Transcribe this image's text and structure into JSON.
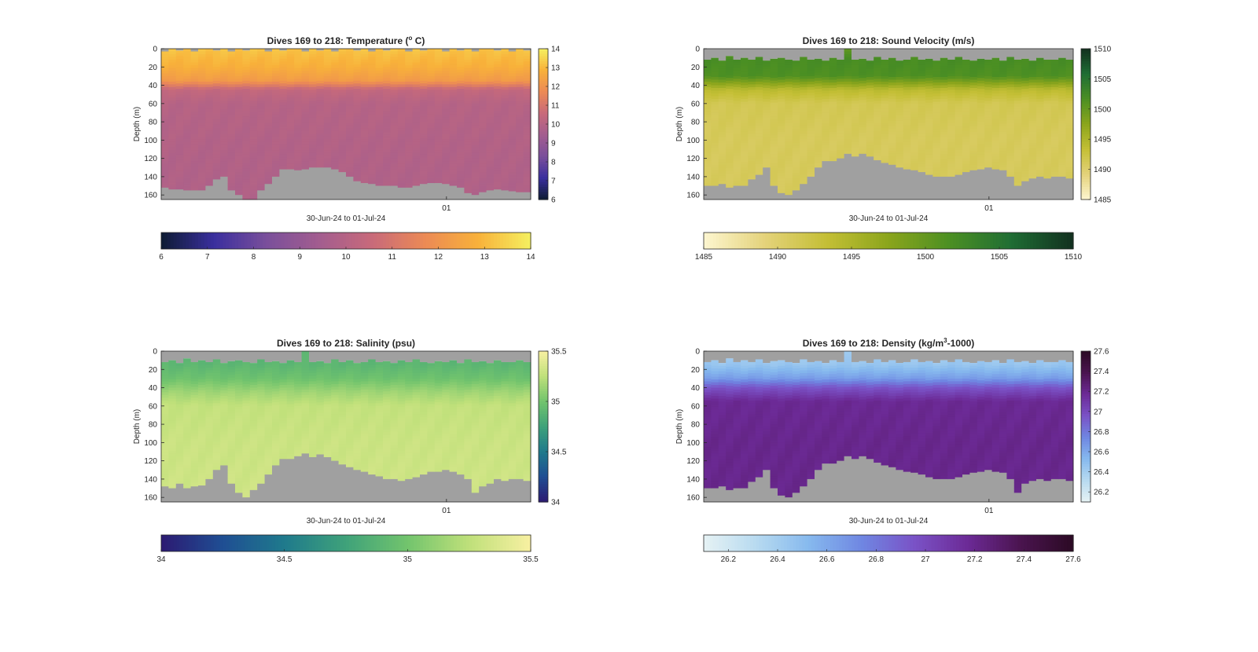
{
  "figure": {
    "background": "#ffffff",
    "missing_color": "#a0a0a0"
  },
  "chart_data": [
    {
      "type": "heatmap",
      "title_main": "Dives 169 to 218: Temperature (",
      "title_sup": "o",
      "title_tail": " C)",
      "xlabel": "30-Jun-24 to 01-Jul-24",
      "ylabel": "Depth (m)",
      "x_tick_labels": [
        "01"
      ],
      "y_ticks": [
        0,
        20,
        40,
        60,
        80,
        100,
        120,
        140,
        160
      ],
      "ylim": [
        0,
        165
      ],
      "y_reversed": true,
      "n_dives": 50,
      "colormap": [
        "#0d1b33",
        "#3a2f9e",
        "#7a4f9b",
        "#a35d8f",
        "#c86a7a",
        "#ec8a55",
        "#f8b13a",
        "#f5f060"
      ],
      "clim": [
        6,
        14
      ],
      "colorbar_ticks": [
        "6",
        "7",
        "8",
        "9",
        "10",
        "11",
        "12",
        "13",
        "14"
      ],
      "horizontal_colorbar_ticks": [
        "6",
        "7",
        "8",
        "9",
        "10",
        "11",
        "12",
        "13",
        "14"
      ],
      "profile": {
        "depths": [
          0,
          20,
          35,
          45,
          60,
          100,
          165
        ],
        "values": [
          13.2,
          12.8,
          12.2,
          10.4,
          10.0,
          9.9,
          9.8
        ]
      },
      "bottom_depth_m": [
        152,
        154,
        154,
        155,
        155,
        155,
        150,
        143,
        140,
        155,
        160,
        165,
        165,
        155,
        148,
        140,
        132,
        132,
        133,
        132,
        130,
        130,
        130,
        132,
        135,
        140,
        145,
        147,
        148,
        150,
        150,
        150,
        152,
        152,
        150,
        148,
        147,
        147,
        148,
        150,
        152,
        158,
        160,
        157,
        155,
        154,
        155,
        156,
        157,
        157
      ],
      "surface_gap_m": [
        3,
        0,
        2,
        0,
        3,
        0,
        0,
        2,
        0,
        3,
        0,
        2,
        0,
        0,
        3,
        0,
        2,
        0,
        0,
        3,
        0,
        2,
        0,
        3,
        0,
        0,
        2,
        0,
        3,
        0,
        2,
        0,
        0,
        3,
        0,
        2,
        0,
        0,
        3,
        0,
        2,
        0,
        3,
        0,
        0,
        2,
        0,
        3,
        0,
        2
      ]
    },
    {
      "type": "heatmap",
      "title_main": "Dives 169 to 218: Sound Velocity (m/s)",
      "title_sup": "",
      "title_tail": "",
      "xlabel": "30-Jun-24 to 01-Jul-24",
      "ylabel": "Depth (m)",
      "x_tick_labels": [
        "01"
      ],
      "y_ticks": [
        0,
        20,
        40,
        60,
        80,
        100,
        120,
        140,
        160
      ],
      "ylim": [
        0,
        165
      ],
      "y_reversed": true,
      "n_dives": 50,
      "colormap": [
        "#fdf6d0",
        "#e4d27a",
        "#c4bf35",
        "#8ba51c",
        "#4b8f23",
        "#1f6d34",
        "#12301f"
      ],
      "clim": [
        1485,
        1510
      ],
      "colorbar_ticks": [
        "1485",
        "1490",
        "1495",
        "1500",
        "1505",
        "1510"
      ],
      "horizontal_colorbar_ticks": [
        "1485",
        "1490",
        "1495",
        "1500",
        "1505",
        "1510"
      ],
      "profile": {
        "depths": [
          0,
          12,
          30,
          45,
          60,
          100,
          165
        ],
        "values": [
          1500,
          1502,
          1501.5,
          1494,
          1491.5,
          1491,
          1491
        ]
      },
      "bottom_depth_m": [
        150,
        150,
        148,
        152,
        150,
        150,
        143,
        138,
        130,
        150,
        158,
        160,
        155,
        148,
        140,
        130,
        123,
        123,
        120,
        115,
        118,
        115,
        118,
        122,
        125,
        127,
        130,
        132,
        133,
        135,
        138,
        140,
        140,
        140,
        138,
        135,
        133,
        132,
        130,
        132,
        133,
        140,
        150,
        145,
        142,
        140,
        142,
        140,
        140,
        142
      ],
      "surface_gap_m": [
        12,
        10,
        13,
        8,
        12,
        10,
        12,
        9,
        13,
        11,
        10,
        12,
        13,
        9,
        12,
        11,
        13,
        10,
        12,
        0,
        12,
        11,
        13,
        9,
        12,
        10,
        13,
        12,
        9,
        12,
        11,
        13,
        10,
        12,
        9,
        12,
        13,
        11,
        12,
        10,
        13,
        9,
        12,
        11,
        13,
        10,
        12,
        12,
        10,
        12
      ]
    },
    {
      "type": "heatmap",
      "title_main": "Dives 169 to 218: Salinity (psu)",
      "title_sup": "",
      "title_tail": "",
      "xlabel": "30-Jun-24 to 01-Jul-24",
      "ylabel": "Depth (m)",
      "x_tick_labels": [
        "01"
      ],
      "y_ticks": [
        0,
        20,
        40,
        60,
        80,
        100,
        120,
        140,
        160
      ],
      "ylim": [
        0,
        165
      ],
      "y_reversed": true,
      "n_dives": 50,
      "colormap": [
        "#2c1a72",
        "#1f4e93",
        "#1f7a8c",
        "#3fa27a",
        "#72c46d",
        "#bfe07a",
        "#f8f0a2"
      ],
      "clim": [
        34,
        35.5
      ],
      "colorbar_ticks": [
        "34",
        "34.5",
        "35",
        "35.5"
      ],
      "horizontal_colorbar_ticks": [
        "34",
        "34.5",
        "35",
        "35.5"
      ],
      "profile": {
        "depths": [
          0,
          15,
          30,
          45,
          60,
          100,
          165
        ],
        "values": [
          34.88,
          34.9,
          34.98,
          35.15,
          35.27,
          35.3,
          35.32
        ]
      },
      "bottom_depth_m": [
        148,
        150,
        145,
        150,
        148,
        147,
        140,
        130,
        125,
        145,
        155,
        160,
        152,
        145,
        135,
        125,
        118,
        118,
        115,
        112,
        116,
        113,
        116,
        120,
        124,
        127,
        130,
        132,
        135,
        137,
        140,
        140,
        142,
        140,
        138,
        135,
        132,
        132,
        130,
        132,
        135,
        140,
        155,
        148,
        145,
        140,
        142,
        140,
        140,
        142
      ],
      "surface_gap_m": [
        12,
        10,
        13,
        8,
        12,
        10,
        12,
        9,
        13,
        11,
        10,
        12,
        13,
        9,
        12,
        11,
        13,
        10,
        12,
        0,
        12,
        11,
        13,
        9,
        12,
        10,
        13,
        12,
        9,
        12,
        11,
        13,
        10,
        12,
        9,
        12,
        13,
        11,
        12,
        10,
        13,
        9,
        12,
        11,
        13,
        10,
        12,
        12,
        10,
        12
      ]
    },
    {
      "type": "heatmap",
      "title_main": "Dives 169 to 218: Density (kg/m",
      "title_sup": "3",
      "title_tail": "-1000)",
      "xlabel": "30-Jun-24 to 01-Jul-24",
      "ylabel": "Depth (m)",
      "x_tick_labels": [
        "01"
      ],
      "y_ticks": [
        0,
        20,
        40,
        60,
        80,
        100,
        120,
        140,
        160
      ],
      "ylim": [
        0,
        165
      ],
      "y_reversed": true,
      "n_dives": 50,
      "colormap": [
        "#e6f2f4",
        "#b7daf0",
        "#86b9ee",
        "#6f86e2",
        "#7a52c6",
        "#6c2a96",
        "#4a144f",
        "#2b0a24"
      ],
      "clim": [
        26.1,
        27.6
      ],
      "colorbar_ticks": [
        "27.6",
        "27.4",
        "27.2",
        "27",
        "26.8",
        "26.6",
        "26.4",
        "26.2"
      ],
      "colorbar_tick_values": [
        27.6,
        27.4,
        27.2,
        27.0,
        26.8,
        26.6,
        26.4,
        26.2
      ],
      "horizontal_colorbar_ticks": [
        "26.2",
        "26.4",
        "26.6",
        "26.8",
        "27",
        "27.2",
        "27.4",
        "27.6"
      ],
      "horizontal_colorbar_tick_values": [
        26.2,
        26.4,
        26.6,
        26.8,
        27.0,
        27.2,
        27.4,
        27.6
      ],
      "profile": {
        "depths": [
          0,
          15,
          30,
          40,
          55,
          100,
          165
        ],
        "values": [
          26.4,
          26.45,
          26.65,
          26.95,
          27.18,
          27.2,
          27.2
        ]
      },
      "bottom_depth_m": [
        150,
        150,
        148,
        152,
        150,
        150,
        143,
        138,
        130,
        150,
        158,
        160,
        155,
        148,
        140,
        130,
        123,
        123,
        120,
        115,
        118,
        115,
        118,
        122,
        125,
        127,
        130,
        132,
        133,
        135,
        138,
        140,
        140,
        140,
        138,
        135,
        133,
        132,
        130,
        132,
        133,
        140,
        155,
        145,
        142,
        140,
        142,
        140,
        140,
        142
      ],
      "surface_gap_m": [
        12,
        10,
        13,
        8,
        12,
        10,
        12,
        9,
        13,
        11,
        10,
        12,
        13,
        9,
        12,
        11,
        13,
        10,
        12,
        0,
        12,
        11,
        13,
        9,
        12,
        10,
        13,
        12,
        9,
        12,
        11,
        13,
        10,
        12,
        9,
        12,
        13,
        11,
        12,
        10,
        13,
        9,
        12,
        11,
        13,
        10,
        12,
        12,
        10,
        12
      ]
    }
  ]
}
